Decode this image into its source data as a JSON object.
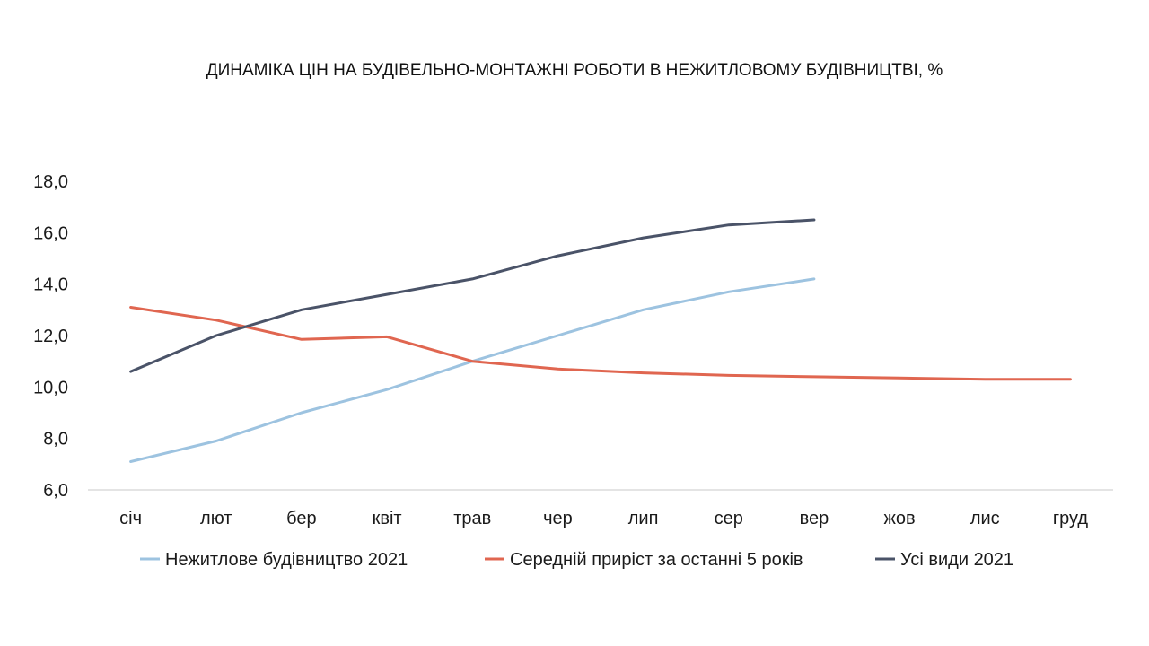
{
  "chart_data": {
    "type": "line",
    "title": "ДИНАМІКА ЦІН НА БУДІВЕЛЬНО-МОНТАЖНІ РОБОТИ В НЕЖИТЛОВОМУ БУДІВНИЦТВІ, %",
    "xlabel": "",
    "ylabel": "",
    "categories": [
      "січ",
      "лют",
      "бер",
      "квіт",
      "трав",
      "чер",
      "лип",
      "сер",
      "вер",
      "жов",
      "лис",
      "груд"
    ],
    "ylim": [
      6.0,
      18.0
    ],
    "yticks": [
      "6,0",
      "8,0",
      "10,0",
      "12,0",
      "14,0",
      "16,0",
      "18,0"
    ],
    "ytick_values": [
      6,
      8,
      10,
      12,
      14,
      16,
      18
    ],
    "grid": false,
    "legend_position": "bottom",
    "series": [
      {
        "name": "Нежитлове будівництво 2021",
        "color": "#9dc3e0",
        "values": [
          7.1,
          7.9,
          9.0,
          9.9,
          11.0,
          12.0,
          13.0,
          13.7,
          14.2,
          null,
          null,
          null
        ]
      },
      {
        "name": "Середній приріст за останні 5 років",
        "color": "#e06650",
        "values": [
          13.1,
          12.6,
          11.85,
          11.95,
          11.0,
          10.7,
          10.55,
          10.45,
          10.4,
          10.35,
          10.3,
          10.3
        ]
      },
      {
        "name": "Усі види 2021",
        "color": "#4a5368",
        "values": [
          10.6,
          12.0,
          13.0,
          13.6,
          14.2,
          15.1,
          15.8,
          16.3,
          16.5,
          null,
          null,
          null
        ]
      }
    ]
  }
}
